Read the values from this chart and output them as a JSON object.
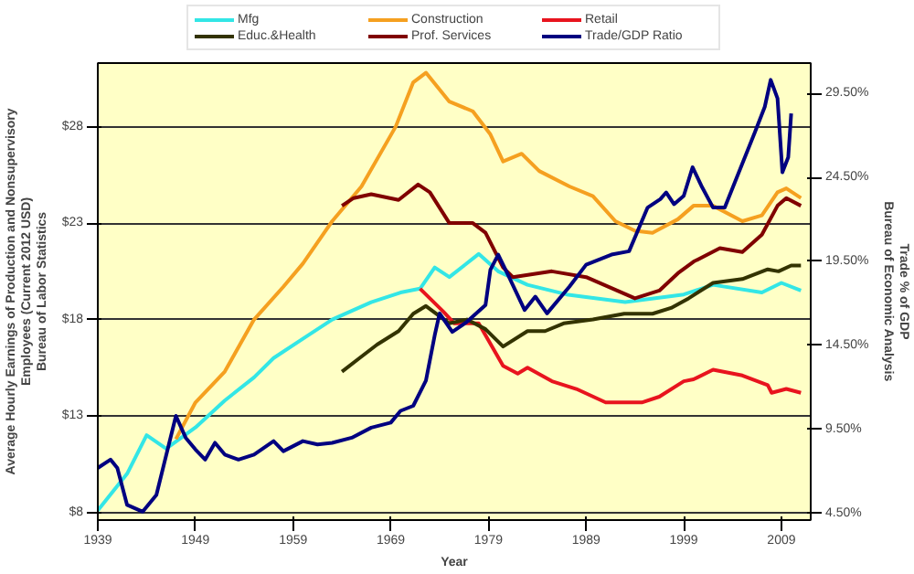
{
  "chart_data": {
    "type": "line",
    "xlabel": "Year",
    "ylabel": "Average Hourly Earnings of Production and Nonsupervisory\nEmployees (Current 2012 USD)\nBureau of Labor Statistics",
    "y2label": "Trade % of GDP\nBureau of Economic Analysis",
    "xlim": [
      1939,
      2012
    ],
    "xticks": [
      1939,
      1949,
      1959,
      1969,
      1979,
      1989,
      1999,
      2009
    ],
    "ylim": [
      7.6,
      31.3
    ],
    "yticks": [
      {
        "value": 8,
        "label": "$8"
      },
      {
        "value": 13,
        "label": "$13"
      },
      {
        "value": 18,
        "label": "$18"
      },
      {
        "value": 23,
        "label": "$23"
      },
      {
        "value": 28,
        "label": "$28"
      }
    ],
    "y2lim": [
      4.1,
      31.3
    ],
    "y2ticks": [
      {
        "value": 4.5,
        "label": "4.50%"
      },
      {
        "value": 9.5,
        "label": "9.50%"
      },
      {
        "value": 14.5,
        "label": "14.50%"
      },
      {
        "value": 19.5,
        "label": "19.50%"
      },
      {
        "value": 24.5,
        "label": "24.50%"
      },
      {
        "value": 29.5,
        "label": "29.50%"
      }
    ],
    "grid": "y",
    "legend": "top",
    "line_style": "solid",
    "series": [
      {
        "name": "Mfg",
        "color": "#33e6e6",
        "x": [
          1939,
          1942,
          1944,
          1946,
          1949,
          1952,
          1955,
          1957,
          1960,
          1963,
          1967,
          1970,
          1972,
          1973.5,
          1975,
          1978,
          1980,
          1983,
          1987,
          1993,
          1999,
          2002,
          2007,
          2009,
          2011
        ],
        "values": [
          8.1,
          10.0,
          12.0,
          11.3,
          12.4,
          13.8,
          15.0,
          16.0,
          17.0,
          18.0,
          18.9,
          19.4,
          19.6,
          20.7,
          20.2,
          21.4,
          20.5,
          19.8,
          19.3,
          18.9,
          19.3,
          19.8,
          19.4,
          19.9,
          19.5
        ]
      },
      {
        "name": "Construction",
        "color": "#f5a020",
        "x": [
          1947,
          1949,
          1952,
          1955,
          1958,
          1960,
          1963,
          1966,
          1969.5,
          1971.3,
          1972.6,
          1975,
          1977.4,
          1979.2,
          1980.5,
          1982.4,
          1984.2,
          1987.3,
          1989.7,
          1992,
          1994,
          1995.8,
          1998.4,
          2000,
          2002,
          2005,
          2007,
          2008.6,
          2009.5,
          2011
        ],
        "values": [
          11.8,
          13.7,
          15.3,
          18.0,
          19.7,
          20.9,
          23.1,
          24.9,
          28.0,
          30.3,
          30.8,
          29.3,
          28.8,
          27.6,
          26.2,
          26.6,
          25.7,
          24.9,
          24.4,
          23.1,
          22.6,
          22.5,
          23.2,
          23.9,
          23.9,
          23.1,
          23.4,
          24.6,
          24.8,
          24.3
        ]
      },
      {
        "name": "Retail",
        "color": "#e8141e",
        "x": [
          1972,
          1974.4,
          1975.5,
          1978,
          1980.5,
          1982,
          1983,
          1985.5,
          1988,
          1991,
          1994.7,
          1996.5,
          1999,
          2000,
          2002,
          2005,
          2007.6,
          2008,
          2009.5,
          2011
        ],
        "values": [
          19.6,
          18.4,
          17.8,
          17.8,
          15.6,
          15.2,
          15.5,
          14.8,
          14.4,
          13.7,
          13.7,
          14.0,
          14.8,
          14.9,
          15.4,
          15.1,
          14.6,
          14.2,
          14.4,
          14.2
        ]
      },
      {
        "name": "Educ.&Health",
        "color": "#333300",
        "x": [
          1964,
          1965.8,
          1967.6,
          1969.8,
          1971.3,
          1972.6,
          1975,
          1976.8,
          1978.7,
          1980.5,
          1983,
          1984.8,
          1986.7,
          1989.7,
          1992.9,
          1995.8,
          1997.7,
          1999.5,
          2002,
          2005,
          2007.6,
          2008.7,
          2010,
          2011
        ],
        "values": [
          15.3,
          16.0,
          16.7,
          17.4,
          18.3,
          18.7,
          17.8,
          18.0,
          17.5,
          16.6,
          17.4,
          17.4,
          17.8,
          18.0,
          18.3,
          18.3,
          18.6,
          19.1,
          19.9,
          20.1,
          20.6,
          20.5,
          20.8,
          20.8
        ]
      },
      {
        "name": "Prof. Services",
        "color": "#800000",
        "x": [
          1964,
          1965.2,
          1967,
          1969.8,
          1971.8,
          1973,
          1975,
          1977.4,
          1978.7,
          1980.5,
          1981.5,
          1985.5,
          1989,
          1994,
          1996.5,
          1998.4,
          2000,
          2002.7,
          2005,
          2007,
          2008.6,
          2009.5,
          2011
        ],
        "values": [
          23.9,
          24.3,
          24.5,
          24.2,
          25.0,
          24.6,
          23.0,
          23.0,
          22.5,
          20.7,
          20.2,
          20.5,
          20.2,
          19.1,
          19.5,
          20.4,
          21.0,
          21.7,
          21.5,
          22.4,
          23.9,
          24.3,
          23.9
        ]
      },
      {
        "name": "Trade/GDP Ratio",
        "color": "#000080",
        "axis": "y2",
        "x": [
          1939,
          1940.3,
          1941,
          1942,
          1943.6,
          1945,
          1947,
          1948,
          1949,
          1950,
          1951,
          1952,
          1953.4,
          1955,
          1957,
          1958,
          1960,
          1961.5,
          1963,
          1965,
          1967,
          1969,
          1970,
          1971.3,
          1972.6,
          1973.5,
          1974,
          1975.3,
          1976.8,
          1978.7,
          1979.2,
          1980,
          1981,
          1982.7,
          1983.8,
          1985,
          1987.3,
          1989,
          1991.6,
          1993.4,
          1995.3,
          1996.6,
          1997.2,
          1998,
          1999,
          1999.9,
          2000.8,
          2002,
          2003.2,
          2004.5,
          2006.3,
          2007.3,
          2007.9,
          2008.6,
          2009.1,
          2009.7,
          2010
        ],
        "values": [
          7.2,
          7.7,
          7.2,
          5.0,
          4.6,
          5.6,
          10.3,
          9.0,
          8.3,
          7.7,
          8.7,
          8.0,
          7.7,
          8.0,
          8.8,
          8.2,
          8.8,
          8.6,
          8.7,
          9.0,
          9.6,
          9.9,
          10.6,
          10.9,
          12.4,
          15.1,
          16.4,
          15.3,
          15.9,
          16.9,
          19.0,
          19.9,
          18.7,
          16.6,
          17.4,
          16.4,
          18.0,
          19.3,
          19.9,
          20.1,
          22.7,
          23.2,
          23.6,
          22.9,
          23.4,
          25.1,
          24.0,
          22.7,
          22.7,
          24.6,
          27.2,
          28.7,
          30.3,
          29.2,
          24.8,
          25.7,
          28.3
        ]
      }
    ]
  }
}
